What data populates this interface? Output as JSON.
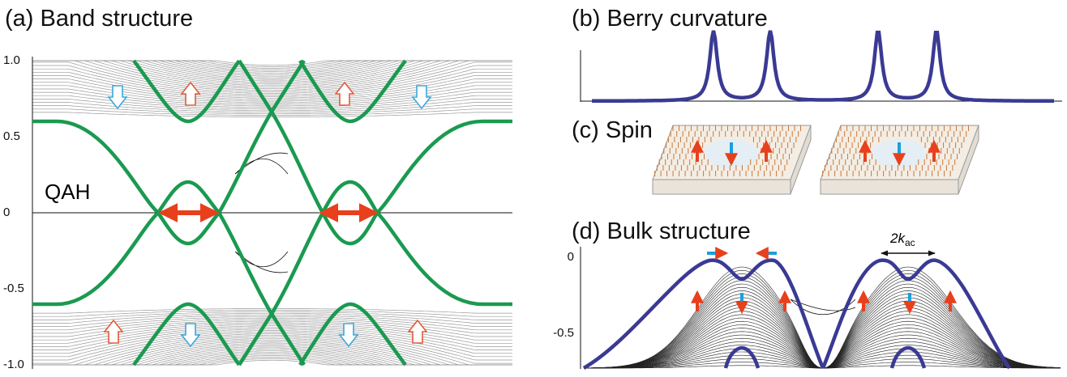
{
  "panels": [
    {
      "title": "(a) Band structure",
      "yticks": [
        "1.0",
        "0.5",
        "0",
        "-0.5",
        "-1.0"
      ],
      "annotation": "QAH"
    },
    {
      "title": "(b) Berry curvature"
    },
    {
      "title": "(c) Spin"
    },
    {
      "title": "(d) Bulk structure",
      "yticks": [
        "0",
        "-0.5"
      ],
      "annotation": {
        "main": "2k",
        "sub": "ac"
      }
    }
  ]
}
